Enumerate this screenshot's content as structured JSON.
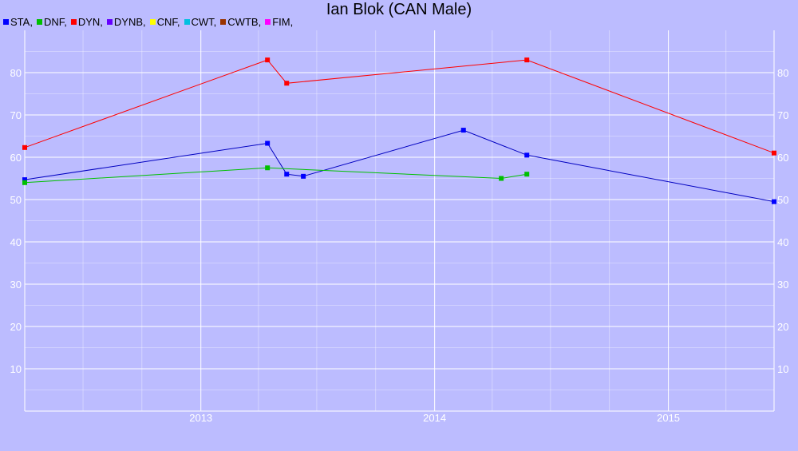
{
  "chart_data": {
    "type": "line",
    "title": "Ian Blok (CAN Male)",
    "xlabel": "",
    "ylabel": "",
    "legend_position": "top-left",
    "grid": true,
    "x_ticks": [
      "2013",
      "2014",
      "2015"
    ],
    "y_ticks": [
      "10",
      "20",
      "30",
      "40",
      "50",
      "60",
      "70",
      "80"
    ],
    "ylim": [
      0,
      90
    ],
    "xlim": [
      "2012-04-01",
      "2015-06-15"
    ],
    "legend": [
      {
        "label": "STA,",
        "color": "#0000ff"
      },
      {
        "label": "DNF,",
        "color": "#00c000"
      },
      {
        "label": "DYN,",
        "color": "#ff0000"
      },
      {
        "label": "DYNB,",
        "color": "#6600ff"
      },
      {
        "label": "CNF,",
        "color": "#ffff00"
      },
      {
        "label": "CWT,",
        "color": "#00c0e0"
      },
      {
        "label": "CWTB,",
        "color": "#993300"
      },
      {
        "label": "FIM,",
        "color": "#ff00ff"
      }
    ],
    "series": [
      {
        "name": "STA",
        "color": "#0000c0",
        "marker": "#0000ff",
        "x": [
          "2012-04-01",
          "2013-04-15",
          "2013-05-15",
          "2013-06-10",
          "2014-02-15",
          "2014-05-25",
          "2015-06-15"
        ],
        "y": [
          54.7,
          63.3,
          56.0,
          55.5,
          66.4,
          60.5,
          49.5
        ]
      },
      {
        "name": "DNF",
        "color": "#00c000",
        "marker": "#00c000",
        "x": [
          "2012-04-01",
          "2013-04-15",
          "2014-04-15",
          "2014-05-25"
        ],
        "y": [
          54.0,
          57.5,
          55.0,
          56.0
        ]
      },
      {
        "name": "DYN",
        "color": "#ff0000",
        "marker": "#ff0000",
        "x": [
          "2012-04-01",
          "2013-04-15",
          "2013-05-15",
          "2014-05-25",
          "2015-06-15"
        ],
        "y": [
          62.3,
          83.0,
          77.5,
          83.0,
          61.0
        ]
      }
    ]
  }
}
